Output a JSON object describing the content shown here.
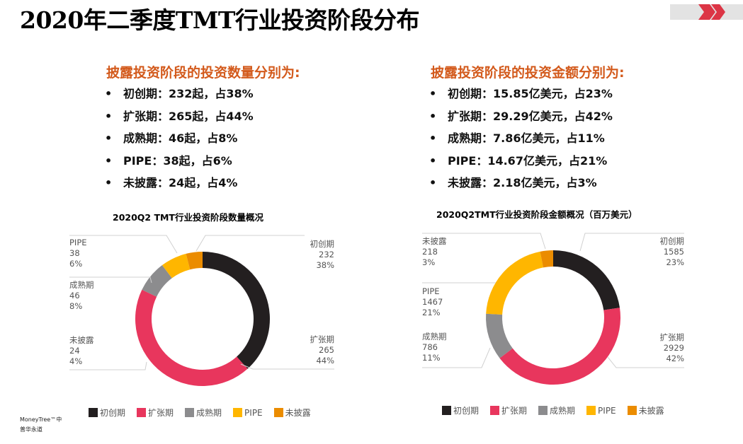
{
  "title": "2020年二季度TMT行业投资阶段分布",
  "footer": {
    "source1": "MoneyTree™中",
    "source2": "普华永道"
  },
  "left_text": {
    "heading": "披露投资阶段的投资数量分别为:",
    "items": [
      "初创期：232起，占38%",
      "扩张期：265起，占44%",
      "成熟期：46起，占8%",
      "PIPE：38起，占6%",
      "未披露：24起，占4%"
    ]
  },
  "right_text": {
    "heading": "披露投资阶段的投资金额分别为:",
    "items": [
      "初创期：15.85亿美元，占23%",
      "扩张期：29.29亿美元，占42%",
      "成熟期：7.86亿美元，占11%",
      "PIPE：14.67亿美元，占21%",
      "未披露：2.18亿美元，占3%"
    ]
  },
  "colors": {
    "初创期": "#231f20",
    "扩张期": "#e8365d",
    "成熟期": "#8c8c8e",
    "PIPE": "#ffb600",
    "未披露": "#eb8c00",
    "heading": "#d35a1c",
    "accent": "#dc3545"
  },
  "chart_data": [
    {
      "type": "pie",
      "variant": "donut",
      "title": "2020Q2 TMT行业投资阶段数量概况",
      "categories": [
        "初创期",
        "扩张期",
        "成熟期",
        "PIPE",
        "未披露"
      ],
      "values": [
        232,
        265,
        46,
        38,
        24
      ],
      "percent_labels": [
        "38%",
        "44%",
        "8%",
        "6%",
        "4%"
      ],
      "legend": "bottom"
    },
    {
      "type": "pie",
      "variant": "donut",
      "title": "2020Q2TMT行业投资阶段金额概况（百万美元）",
      "categories": [
        "初创期",
        "扩张期",
        "成熟期",
        "PIPE",
        "未披露"
      ],
      "values": [
        1585,
        2929,
        786,
        1467,
        218
      ],
      "percent_labels": [
        "23%",
        "42%",
        "11%",
        "21%",
        "3%"
      ],
      "legend": "bottom"
    }
  ]
}
